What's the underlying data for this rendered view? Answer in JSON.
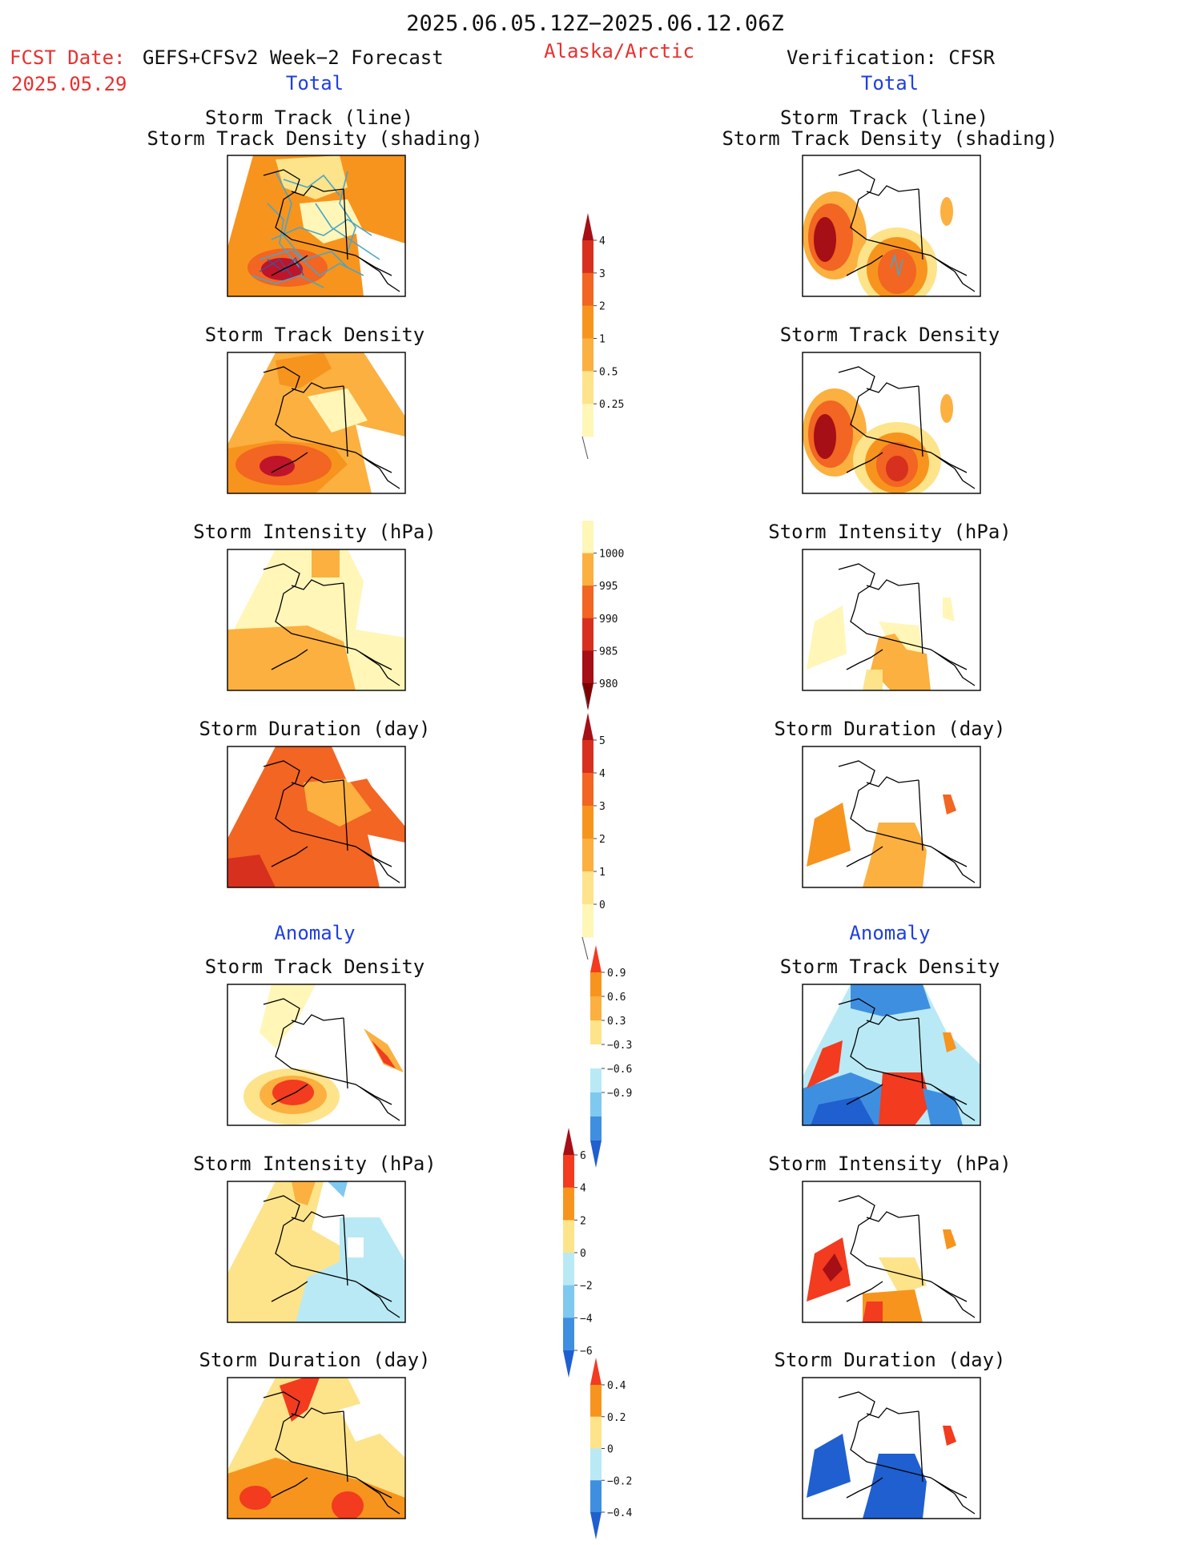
{
  "header": {
    "period": "2025.06.05.12Z−2025.06.12.06Z",
    "fcst_label": "FCST Date:",
    "fcst_model": "GEFS+CFSv2 Week−2 Forecast",
    "fcst_date": "2025.05.29",
    "region": "Alaska/Arctic",
    "verification": "Verification: CFSR",
    "left_section": "Total",
    "right_section": "Total"
  },
  "anomaly_label": "Anomaly",
  "panel_titles": {
    "storm_track_line": "Storm Track (line)",
    "storm_track_shading": "Storm Track Density (shading)",
    "density": "Storm Track Density",
    "intensity": "Storm Intensity (hPa)",
    "duration": "Storm Duration (day)"
  },
  "colorbars": [
    {
      "name": "total-density",
      "labels": [
        "4",
        "3",
        "2",
        "1",
        "0.5",
        "0.25"
      ],
      "colors": [
        "#a50f15",
        "#d7301f",
        "#f26522",
        "#f7941d",
        "#fbb040",
        "#fde38a",
        "#fff6b8"
      ]
    },
    {
      "name": "total-intensity",
      "labels": [
        "1000",
        "995",
        "990",
        "985",
        "980"
      ],
      "colors": [
        "#fff6b8",
        "#fbb040",
        "#f26522",
        "#d7301f",
        "#a50f15",
        "#7f0000"
      ]
    },
    {
      "name": "total-duration",
      "labels": [
        "5",
        "4",
        "3",
        "2",
        "1",
        "0"
      ],
      "colors": [
        "#a50f15",
        "#d7301f",
        "#f26522",
        "#f7941d",
        "#fbb040",
        "#fde38a",
        "#fff6b8"
      ]
    },
    {
      "name": "anom-density",
      "labels": [
        "0.9",
        "0.6",
        "0.3",
        "−0.3",
        "−0.6",
        "−0.9"
      ],
      "colors": [
        "#f23b1f",
        "#f7941d",
        "#fbb040",
        "#fde38a",
        "#ffffff",
        "#b9e9f5",
        "#7fc8f0",
        "#3f8fe0",
        "#1f5fd0"
      ]
    },
    {
      "name": "anom-intensity",
      "labels": [
        "6",
        "4",
        "2",
        "0",
        "−2",
        "−4",
        "−6"
      ],
      "colors": [
        "#a50f15",
        "#f23b1f",
        "#f7941d",
        "#fde38a",
        "#b9e9f5",
        "#7fc8f0",
        "#3f8fe0",
        "#1f5fd0"
      ]
    },
    {
      "name": "anom-duration",
      "labels": [
        "0.4",
        "0.2",
        "0",
        "−0.2",
        "−0.4"
      ],
      "colors": [
        "#f23b1f",
        "#f7941d",
        "#fde38a",
        "#b9e9f5",
        "#3f8fe0",
        "#1f5fd0"
      ]
    }
  ],
  "colors": {
    "title": "#111111",
    "accent_red": "#e8302e",
    "accent_blue": "#1f3fe0"
  }
}
